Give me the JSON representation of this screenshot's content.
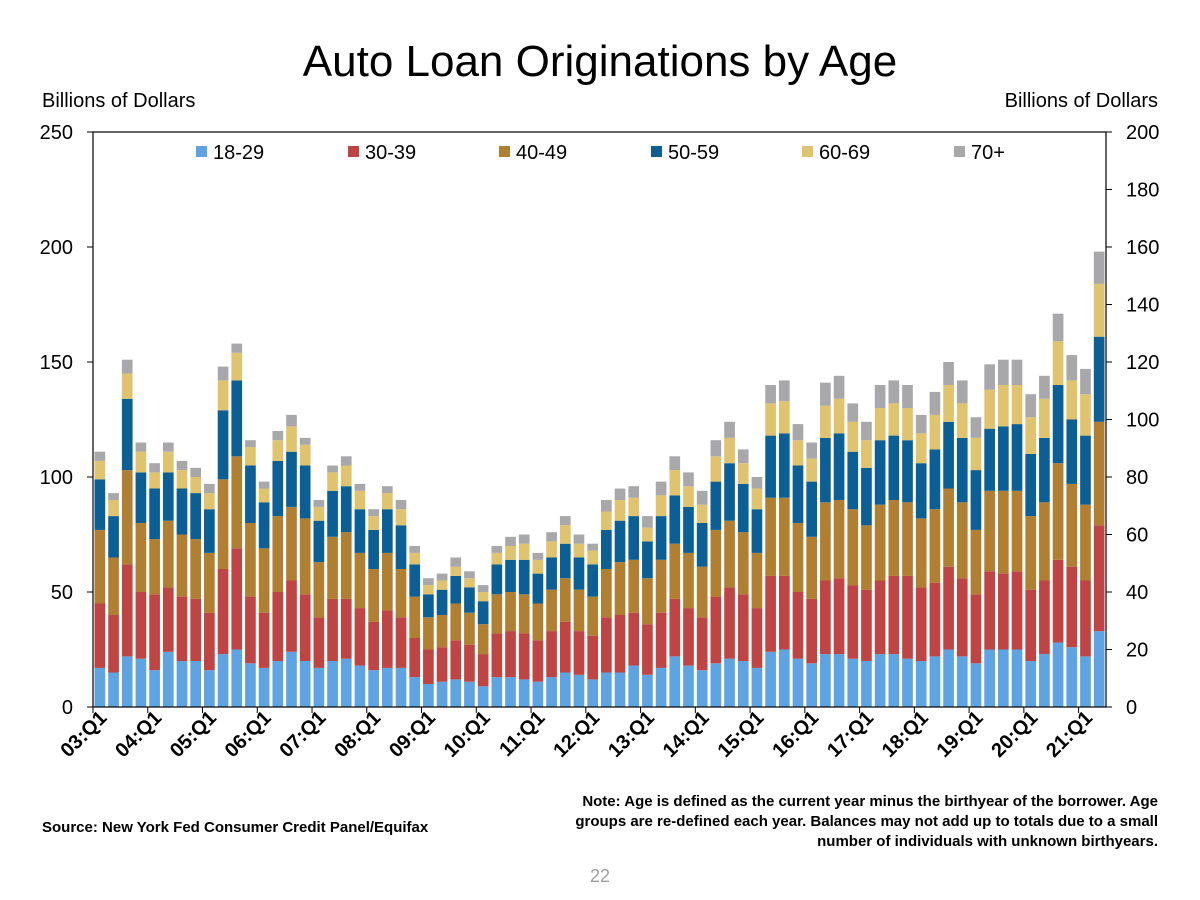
{
  "title": "Auto Loan Originations by Age",
  "left_axis_label": "Billions of Dollars",
  "right_axis_label": "Billions of Dollars",
  "source": "Source: New York Fed Consumer Credit Panel/Equifax",
  "note": "Note: Age is defined as the current year minus the birthyear of the borrower. Age groups are re-defined each year. Balances may not add up to totals due to a small number of individuals with unknown birthyears.",
  "page_number": "22",
  "chart_data": {
    "type": "bar",
    "stacked": true,
    "title": "Auto Loan Originations by Age",
    "ylabel": "Billions of Dollars",
    "y2label": "Billions of Dollars",
    "ylim": [
      0,
      250
    ],
    "y2lim": [
      0,
      200
    ],
    "y_ticks": [
      0,
      50,
      100,
      150,
      200,
      250
    ],
    "y2_ticks": [
      0,
      20,
      40,
      60,
      80,
      100,
      120,
      140,
      160,
      180,
      200
    ],
    "legend_position": "top",
    "grid": false,
    "colors": {
      "18-29": "#5ea4e3",
      "30-39": "#bf4545",
      "40-49": "#b07f31",
      "50-59": "#0b5f94",
      "60-69": "#e0c36f",
      "70+": "#a8a8ab"
    },
    "x_tick_labels": [
      "03:Q1",
      "04:Q1",
      "05:Q1",
      "06:Q1",
      "07:Q1",
      "08:Q1",
      "09:Q1",
      "10:Q1",
      "11:Q1",
      "12:Q1",
      "13:Q1",
      "14:Q1",
      "15:Q1",
      "16:Q1",
      "17:Q1",
      "18:Q1",
      "19:Q1",
      "20:Q1",
      "21:Q1"
    ],
    "categories": [
      "03:Q1",
      "03:Q2",
      "03:Q3",
      "03:Q4",
      "04:Q1",
      "04:Q2",
      "04:Q3",
      "04:Q4",
      "05:Q1",
      "05:Q2",
      "05:Q3",
      "05:Q4",
      "06:Q1",
      "06:Q2",
      "06:Q3",
      "06:Q4",
      "07:Q1",
      "07:Q2",
      "07:Q3",
      "07:Q4",
      "08:Q1",
      "08:Q2",
      "08:Q3",
      "08:Q4",
      "09:Q1",
      "09:Q2",
      "09:Q3",
      "09:Q4",
      "10:Q1",
      "10:Q2",
      "10:Q3",
      "10:Q4",
      "11:Q1",
      "11:Q2",
      "11:Q3",
      "11:Q4",
      "12:Q1",
      "12:Q2",
      "12:Q3",
      "12:Q4",
      "13:Q1",
      "13:Q2",
      "13:Q3",
      "13:Q4",
      "14:Q1",
      "14:Q2",
      "14:Q3",
      "14:Q4",
      "15:Q1",
      "15:Q2",
      "15:Q3",
      "15:Q4",
      "16:Q1",
      "16:Q2",
      "16:Q3",
      "16:Q4",
      "17:Q1",
      "17:Q2",
      "17:Q3",
      "17:Q4",
      "18:Q1",
      "18:Q2",
      "18:Q3",
      "18:Q4",
      "19:Q1",
      "19:Q2",
      "19:Q3",
      "19:Q4",
      "20:Q1",
      "20:Q2",
      "20:Q3",
      "20:Q4",
      "21:Q1",
      "21:Q2"
    ],
    "series": [
      {
        "name": "18-29",
        "values": [
          17,
          15,
          22,
          21,
          16,
          24,
          20,
          20,
          16,
          23,
          25,
          19,
          17,
          20,
          24,
          20,
          17,
          20,
          21,
          18,
          16,
          17,
          17,
          13,
          10,
          11,
          12,
          11,
          9,
          13,
          13,
          12,
          11,
          13,
          15,
          14,
          12,
          15,
          15,
          18,
          14,
          17,
          22,
          18,
          16,
          19,
          21,
          20,
          17,
          24,
          25,
          21,
          19,
          23,
          23,
          21,
          20,
          23,
          23,
          21,
          20,
          22,
          25,
          22,
          19,
          25,
          25,
          25,
          20,
          23,
          28,
          26,
          22,
          33
        ]
      },
      {
        "name": "30-39",
        "values": [
          28,
          25,
          40,
          29,
          33,
          28,
          28,
          27,
          25,
          37,
          44,
          29,
          24,
          30,
          31,
          29,
          22,
          27,
          26,
          25,
          21,
          25,
          22,
          17,
          15,
          15,
          17,
          16,
          14,
          19,
          20,
          20,
          18,
          20,
          22,
          19,
          19,
          24,
          25,
          23,
          22,
          24,
          25,
          25,
          23,
          29,
          31,
          29,
          26,
          33,
          32,
          29,
          28,
          32,
          33,
          32,
          31,
          32,
          34,
          36,
          32,
          32,
          36,
          34,
          30,
          34,
          33,
          34,
          31,
          32,
          36,
          35,
          33,
          46
        ]
      },
      {
        "name": "40-49",
        "values": [
          32,
          25,
          41,
          30,
          24,
          29,
          27,
          26,
          26,
          39,
          40,
          32,
          28,
          33,
          32,
          33,
          24,
          27,
          29,
          24,
          23,
          25,
          21,
          18,
          14,
          14,
          16,
          14,
          13,
          17,
          17,
          17,
          16,
          18,
          19,
          18,
          17,
          21,
          23,
          23,
          20,
          23,
          24,
          24,
          22,
          29,
          29,
          27,
          24,
          34,
          34,
          30,
          27,
          34,
          34,
          33,
          28,
          33,
          33,
          32,
          30,
          32,
          34,
          33,
          28,
          35,
          36,
          35,
          32,
          34,
          42,
          36,
          33,
          45
        ]
      },
      {
        "name": "50-59",
        "values": [
          22,
          18,
          31,
          22,
          22,
          21,
          20,
          20,
          19,
          30,
          33,
          25,
          20,
          24,
          24,
          23,
          18,
          20,
          20,
          19,
          17,
          19,
          19,
          14,
          10,
          11,
          12,
          11,
          10,
          13,
          14,
          15,
          13,
          14,
          15,
          14,
          14,
          17,
          18,
          19,
          16,
          19,
          21,
          20,
          19,
          21,
          25,
          21,
          19,
          27,
          28,
          25,
          24,
          28,
          29,
          25,
          25,
          28,
          28,
          27,
          24,
          26,
          29,
          28,
          26,
          27,
          28,
          29,
          27,
          28,
          34,
          28,
          30,
          37
        ]
      },
      {
        "name": "60-69",
        "values": [
          8,
          7,
          11,
          9,
          7,
          9,
          8,
          7,
          7,
          13,
          12,
          8,
          6,
          9,
          11,
          9,
          6,
          8,
          9,
          8,
          6,
          7,
          7,
          5,
          4,
          4,
          4,
          4,
          4,
          5,
          6,
          7,
          6,
          7,
          8,
          6,
          6,
          8,
          9,
          8,
          6,
          9,
          11,
          9,
          8,
          11,
          11,
          9,
          9,
          14,
          14,
          11,
          10,
          14,
          15,
          13,
          12,
          14,
          14,
          14,
          13,
          15,
          16,
          15,
          14,
          17,
          18,
          17,
          16,
          17,
          19,
          17,
          18,
          23
        ]
      },
      {
        "name": "70+",
        "values": [
          4,
          3,
          6,
          4,
          4,
          4,
          4,
          4,
          4,
          6,
          4,
          3,
          3,
          4,
          5,
          3,
          3,
          3,
          4,
          3,
          3,
          3,
          4,
          3,
          3,
          3,
          4,
          3,
          3,
          3,
          4,
          4,
          3,
          4,
          4,
          4,
          3,
          5,
          5,
          5,
          5,
          6,
          6,
          6,
          6,
          7,
          7,
          6,
          5,
          8,
          9,
          7,
          7,
          10,
          10,
          8,
          8,
          10,
          10,
          10,
          8,
          10,
          10,
          10,
          9,
          11,
          11,
          11,
          10,
          10,
          12,
          11,
          11,
          14
        ]
      }
    ]
  }
}
